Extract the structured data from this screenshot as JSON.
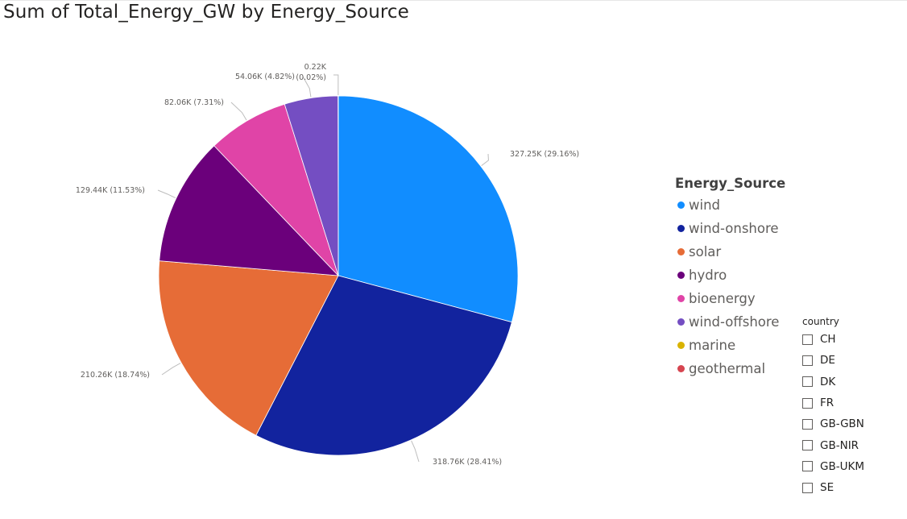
{
  "title": "Sum of Total_Energy_GW by Energy_Source",
  "chart_data": {
    "type": "pie",
    "title": "Sum of Total_Energy_GW by Energy_Source",
    "legend_title": "Energy_Source",
    "legend_position": "right",
    "start_angle_deg": 0,
    "direction": "clockwise",
    "slices": [
      {
        "name": "wind",
        "value": 327250,
        "label": "327.25K (29.16%)",
        "color": "#118dff"
      },
      {
        "name": "wind-onshore",
        "value": 318760,
        "label": "318.76K (28.41%)",
        "color": "#12239e"
      },
      {
        "name": "solar",
        "value": 210260,
        "label": "210.26K (18.74%)",
        "color": "#e66c37"
      },
      {
        "name": "hydro",
        "value": 129440,
        "label": "129.44K (11.53%)",
        "color": "#6b007b"
      },
      {
        "name": "bioenergy",
        "value": 82060,
        "label": "82.06K (7.31%)",
        "color": "#e044a7"
      },
      {
        "name": "wind-offshore",
        "value": 54060,
        "label": "54.06K (4.82%)",
        "color": "#744ec2"
      },
      {
        "name": "marine",
        "value": 220,
        "label": "0.22K (0.02%)",
        "color": "#d9b300"
      },
      {
        "name": "geothermal",
        "value": 0,
        "label": "",
        "color": "#d64550"
      }
    ]
  },
  "slicer": {
    "title": "country",
    "items": [
      "CH",
      "DE",
      "DK",
      "FR",
      "GB-GBN",
      "GB-NIR",
      "GB-UKM",
      "SE"
    ]
  }
}
